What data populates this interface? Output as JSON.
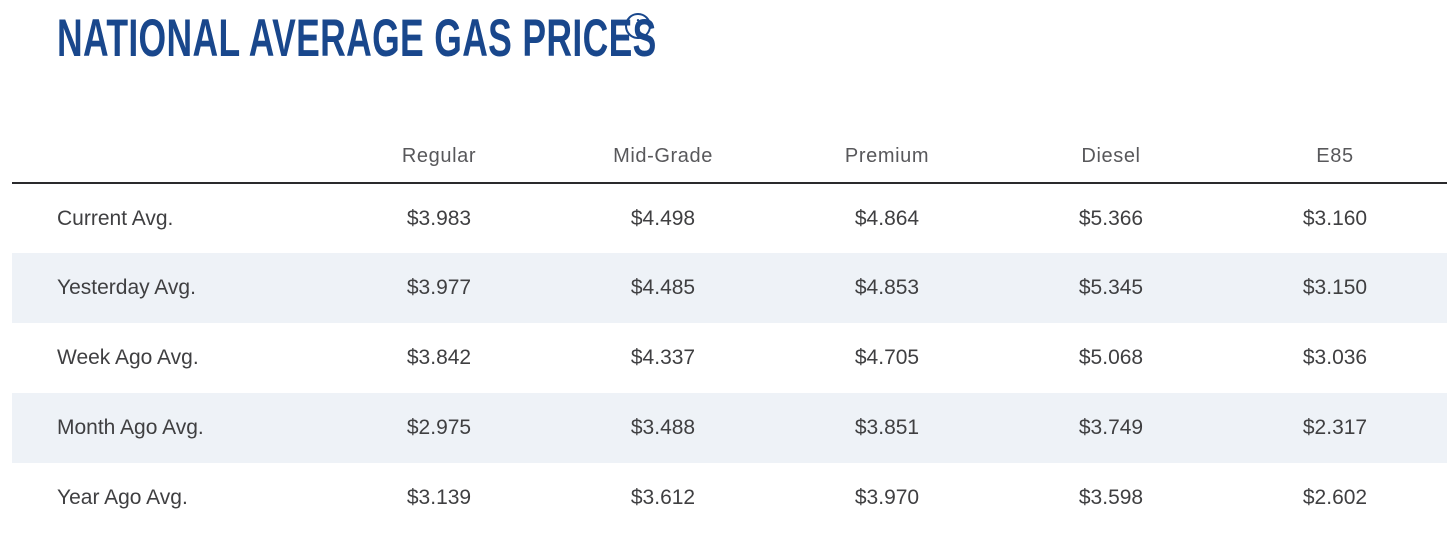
{
  "page": {
    "title": "NATIONAL AVERAGE GAS PRICES",
    "info_icon_glyph": "i"
  },
  "colors": {
    "title_blue": "#19478C",
    "header_text": "#58585B",
    "cell_text": "#3F3F41",
    "stripe_background": "#EEF2F7",
    "header_divider": "#2A2A2C",
    "page_background": "#FFFFFF"
  },
  "table": {
    "columns": [
      "",
      "Regular",
      "Mid-Grade",
      "Premium",
      "Diesel",
      "E85"
    ],
    "rows": [
      {
        "label": "Current Avg.",
        "values": [
          "$3.983",
          "$4.498",
          "$4.864",
          "$5.366",
          "$3.160"
        ]
      },
      {
        "label": "Yesterday Avg.",
        "values": [
          "$3.977",
          "$4.485",
          "$4.853",
          "$5.345",
          "$3.150"
        ]
      },
      {
        "label": "Week Ago Avg.",
        "values": [
          "$3.842",
          "$4.337",
          "$4.705",
          "$5.068",
          "$3.036"
        ]
      },
      {
        "label": "Month Ago Avg.",
        "values": [
          "$2.975",
          "$3.488",
          "$3.851",
          "$3.749",
          "$2.317"
        ]
      },
      {
        "label": "Year Ago Avg.",
        "values": [
          "$3.139",
          "$3.612",
          "$3.970",
          "$3.598",
          "$2.602"
        ]
      }
    ]
  },
  "chart_data": {
    "type": "table",
    "title": "NATIONAL AVERAGE GAS PRICES",
    "columns": [
      "Regular",
      "Mid-Grade",
      "Premium",
      "Diesel",
      "E85"
    ],
    "row_labels": [
      "Current Avg.",
      "Yesterday Avg.",
      "Week Ago Avg.",
      "Month Ago Avg.",
      "Year Ago Avg."
    ],
    "values_usd_per_gallon": [
      [
        3.983,
        4.498,
        4.864,
        5.366,
        3.16
      ],
      [
        3.977,
        4.485,
        4.853,
        5.345,
        3.15
      ],
      [
        3.842,
        4.337,
        4.705,
        5.068,
        3.036
      ],
      [
        2.975,
        3.488,
        3.851,
        3.749,
        2.317
      ],
      [
        3.139,
        3.612,
        3.97,
        3.598,
        2.602
      ]
    ],
    "units": "USD per gallon",
    "layout": "striped rows, label column left-aligned, value columns centered"
  }
}
